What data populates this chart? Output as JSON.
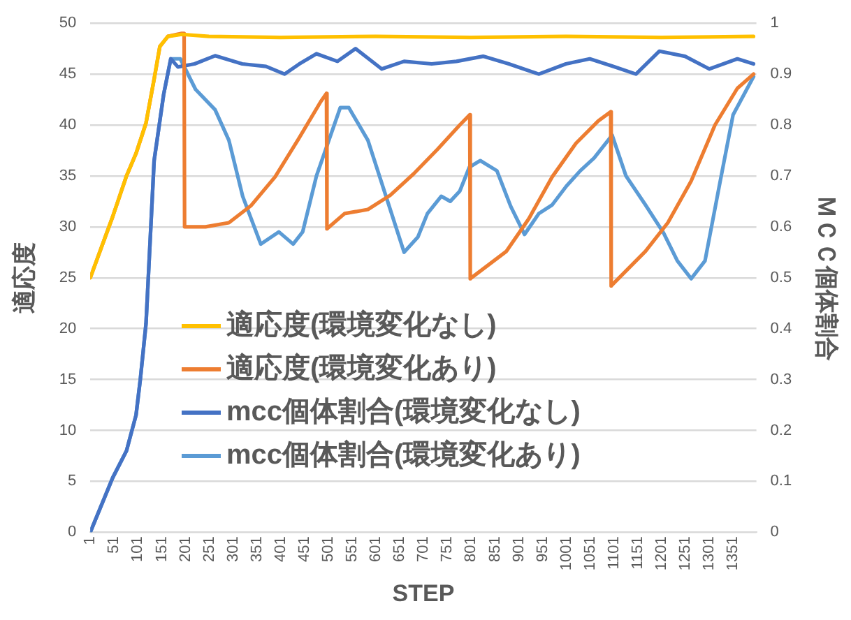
{
  "chart_data": {
    "type": "line",
    "xlabel": "STEP",
    "ylabel": "適応度",
    "y2label": "ＭＣＣ個体割合",
    "xlim": [
      1,
      1400
    ],
    "xticks": [
      1,
      51,
      101,
      151,
      201,
      251,
      301,
      351,
      401,
      451,
      501,
      551,
      601,
      651,
      701,
      751,
      801,
      851,
      901,
      951,
      1001,
      1051,
      1101,
      1151,
      1201,
      1251,
      1301,
      1351
    ],
    "ylim": [
      0,
      50
    ],
    "yticks": [
      0,
      5,
      10,
      15,
      20,
      25,
      30,
      35,
      40,
      45,
      50
    ],
    "y2lim": [
      0,
      1
    ],
    "y2ticks": [
      0,
      0.1,
      0.2,
      0.3,
      0.4,
      0.5,
      0.6,
      0.7,
      0.8,
      0.9,
      1
    ],
    "grid": "y",
    "legend": "bottom",
    "marker": "none",
    "line_style": "solid",
    "series": [
      {
        "name": "適応度(環境変化なし)",
        "color": "#ffc000",
        "x": [
          1,
          48,
          77,
          97,
          118,
          135,
          147,
          164,
          193,
          250,
          400,
          600,
          800,
          1000,
          1200,
          1394
        ],
        "values": [
          25,
          31,
          35,
          37.2,
          40.2,
          44.5,
          47.7,
          48.7,
          48.9,
          48.7,
          48.6,
          48.7,
          48.6,
          48.7,
          48.6,
          48.7
        ]
      },
      {
        "name": "適応度(環境変化あり)",
        "color": "#ed7d31",
        "x": [
          1,
          48,
          77,
          97,
          118,
          135,
          147,
          164,
          193,
          198,
          199,
          243,
          292,
          339,
          389,
          438,
          485,
          497,
          498,
          535,
          584,
          631,
          680,
          730,
          777,
          798,
          799,
          875,
          922,
          971,
          1021,
          1068,
          1094,
          1095,
          1167,
          1214,
          1263,
          1313,
          1360,
          1394
        ],
        "values": [
          25,
          31,
          35,
          37.2,
          40.2,
          44.5,
          47.7,
          48.7,
          49,
          49,
          30,
          30,
          30.4,
          32.1,
          34.9,
          38.6,
          42.3,
          43.1,
          29.8,
          31.3,
          31.7,
          33.1,
          35.2,
          37.6,
          40,
          41,
          24.9,
          27.6,
          30.8,
          34.9,
          38.2,
          40.4,
          41.3,
          24.2,
          27.6,
          30.4,
          34.5,
          40,
          43.6,
          45
        ]
      },
      {
        "name": "mcc個体割合(環境変化なし)",
        "color": "#4472c4",
        "axis": "y2",
        "x": [
          1,
          48,
          77,
          97,
          106,
          118,
          135,
          155,
          170,
          185,
          220,
          263,
          320,
          370,
          409,
          440,
          476,
          520,
          558,
          613,
          660,
          718,
          770,
          826,
          880,
          943,
          1000,
          1050,
          1100,
          1147,
          1196,
          1250,
          1301,
          1360,
          1394
        ],
        "values": [
          0,
          0.107,
          0.16,
          0.23,
          0.3,
          0.41,
          0.73,
          0.86,
          0.93,
          0.914,
          0.92,
          0.936,
          0.92,
          0.915,
          0.9,
          0.92,
          0.94,
          0.925,
          0.95,
          0.91,
          0.925,
          0.92,
          0.925,
          0.935,
          0.92,
          0.9,
          0.92,
          0.93,
          0.915,
          0.9,
          0.945,
          0.935,
          0.91,
          0.93,
          0.92
        ]
      },
      {
        "name": "mcc個体割合(環境変化あり)",
        "color": "#5b9bd5",
        "axis": "y2",
        "x": [
          1,
          48,
          77,
          97,
          106,
          118,
          135,
          155,
          170,
          190,
          222,
          263,
          292,
          321,
          359,
          397,
          427,
          447,
          476,
          526,
          544,
          584,
          622,
          660,
          689,
          709,
          738,
          757,
          777,
          797,
          820,
          855,
          884,
          913,
          943,
          971,
          1001,
          1030,
          1059,
          1097,
          1126,
          1167,
          1205,
          1234,
          1263,
          1292,
          1322,
          1351,
          1394
        ],
        "values": [
          0,
          0.107,
          0.16,
          0.23,
          0.3,
          0.41,
          0.73,
          0.86,
          0.93,
          0.93,
          0.87,
          0.83,
          0.77,
          0.66,
          0.566,
          0.59,
          0.566,
          0.59,
          0.7,
          0.834,
          0.834,
          0.77,
          0.66,
          0.55,
          0.58,
          0.626,
          0.66,
          0.65,
          0.67,
          0.717,
          0.73,
          0.71,
          0.64,
          0.585,
          0.626,
          0.643,
          0.68,
          0.71,
          0.735,
          0.78,
          0.7,
          0.643,
          0.588,
          0.533,
          0.498,
          0.533,
          0.68,
          0.82,
          0.895
        ]
      }
    ]
  }
}
